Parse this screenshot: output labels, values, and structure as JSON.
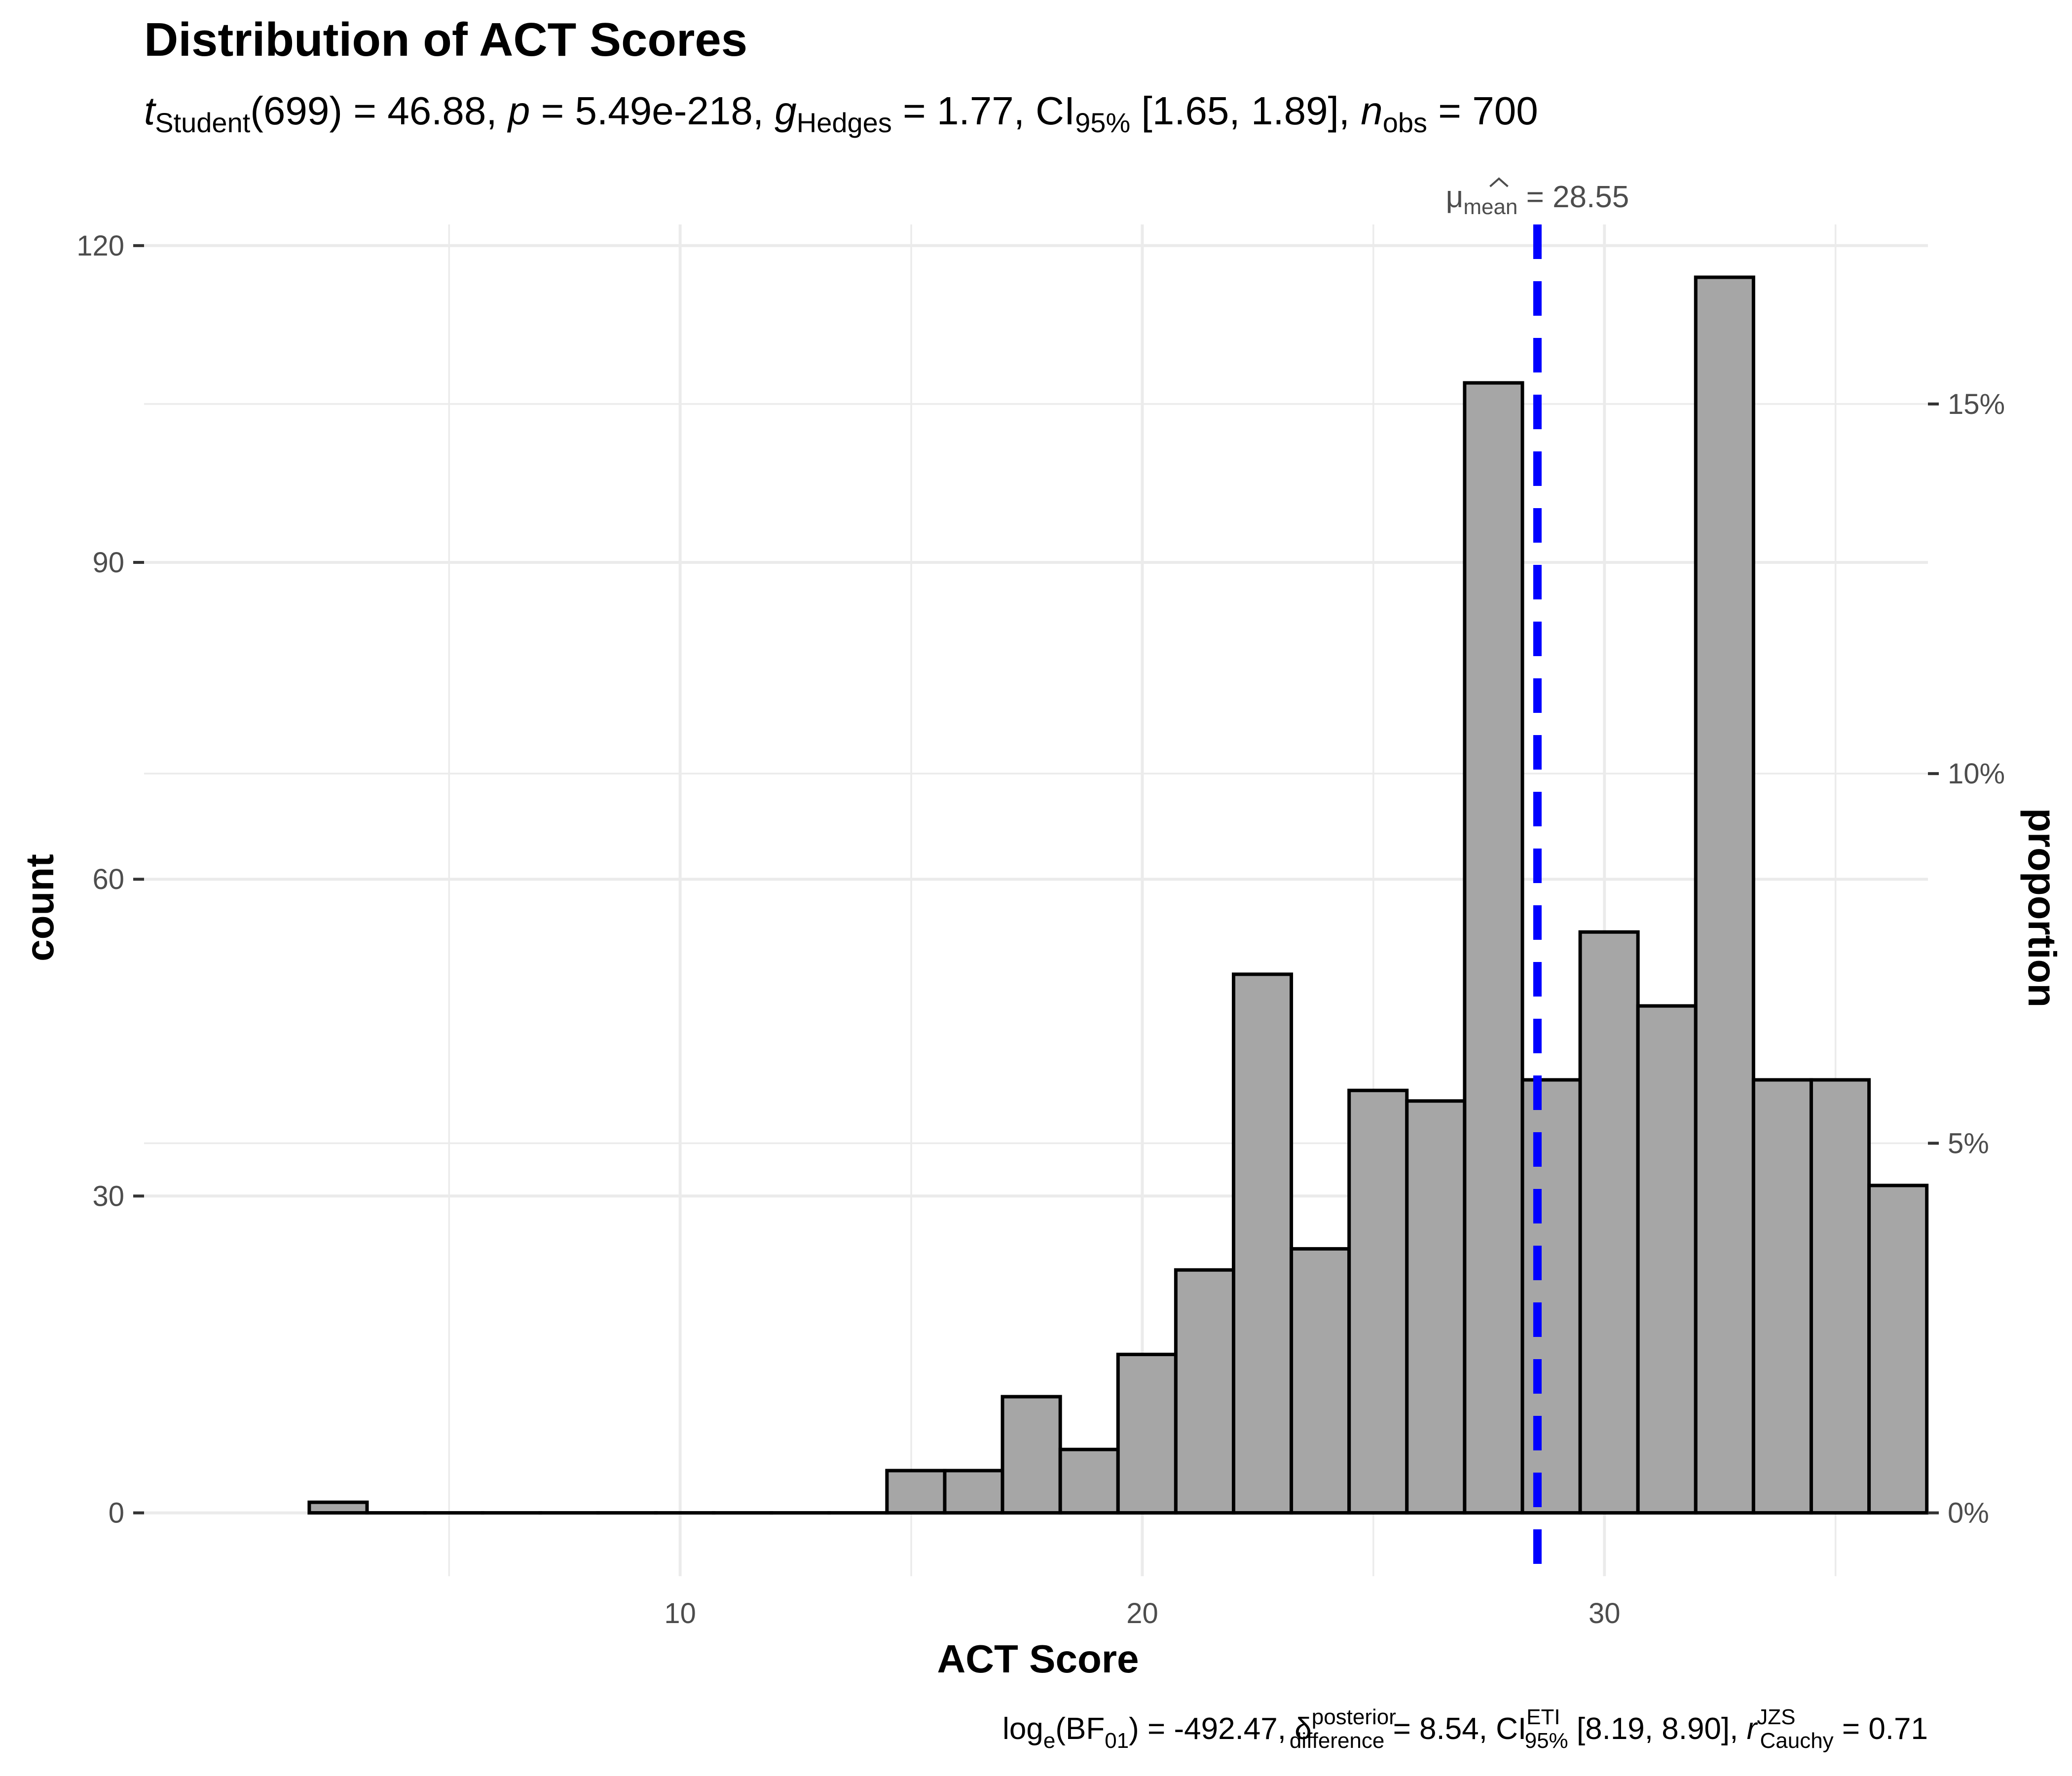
{
  "chart_data": {
    "type": "bar",
    "title": "Distribution of ACT Scores",
    "subtitle": {
      "parts": [
        {
          "text": "t",
          "italic": true
        },
        {
          "text": "Student",
          "sub": true
        },
        {
          "text": "(699) = 46.88, "
        },
        {
          "text": "p",
          "italic": true
        },
        {
          "text": " = 5.49e-218, "
        },
        {
          "text": "g",
          "italic": true,
          "hat": true
        },
        {
          "text": "Hedges",
          "sub": true
        },
        {
          "text": " = 1.77, CI"
        },
        {
          "text": "95%",
          "sub": true
        },
        {
          "text": " [1.65, 1.89], "
        },
        {
          "text": "n",
          "italic": true
        },
        {
          "text": "obs",
          "sub": true
        },
        {
          "text": " = 700"
        }
      ]
    },
    "caption": {
      "parts": [
        {
          "text": "log"
        },
        {
          "text": "e",
          "sub": true
        },
        {
          "text": "(BF"
        },
        {
          "text": "01",
          "sub": true
        },
        {
          "text": ") = -492.47, "
        },
        {
          "text": "δ",
          "hat": true
        },
        {
          "text": "posterior",
          "sup": true
        },
        {
          "text": "difference",
          "sub": true,
          "stacked": true
        },
        {
          "text": " = 8.54, CI"
        },
        {
          "text": "ETI",
          "sup": true
        },
        {
          "text": "95%",
          "sub": true,
          "stacked": true
        },
        {
          "text": " [8.19, 8.90], "
        },
        {
          "text": "r",
          "italic": true
        },
        {
          "text": "JZS",
          "sup": true
        },
        {
          "text": "Cauchy",
          "sub": true,
          "stacked": true
        },
        {
          "text": " = 0.71"
        }
      ]
    },
    "xlabel": "ACT Score",
    "ylabel": "count",
    "y2label": "proportion",
    "xlim": [
      -1.6,
      37.0
    ],
    "ylim": [
      -6,
      122
    ],
    "x_ticks": [
      10,
      20,
      30
    ],
    "y_ticks": [
      0,
      30,
      60,
      90,
      120
    ],
    "y2_ticks": [
      {
        "value": 0,
        "label": "0%"
      },
      {
        "value": 35,
        "label": "5%"
      },
      {
        "value": 70,
        "label": "10%"
      },
      {
        "value": 105,
        "label": "15%"
      }
    ],
    "bin_width": 1.25,
    "bins": [
      {
        "x": 2.6,
        "count": 1
      },
      {
        "x": 3.85,
        "count": 0
      },
      {
        "x": 5.1,
        "count": 0
      },
      {
        "x": 6.35,
        "count": 0
      },
      {
        "x": 7.6,
        "count": 0
      },
      {
        "x": 8.85,
        "count": 0
      },
      {
        "x": 10.1,
        "count": 0
      },
      {
        "x": 11.35,
        "count": 0
      },
      {
        "x": 12.6,
        "count": 0
      },
      {
        "x": 13.85,
        "count": 0
      },
      {
        "x": 15.1,
        "count": 4
      },
      {
        "x": 16.35,
        "count": 4
      },
      {
        "x": 17.6,
        "count": 11
      },
      {
        "x": 18.85,
        "count": 6
      },
      {
        "x": 20.1,
        "count": 15
      },
      {
        "x": 21.35,
        "count": 23
      },
      {
        "x": 22.6,
        "count": 51
      },
      {
        "x": 23.85,
        "count": 25
      },
      {
        "x": 25.1,
        "count": 40
      },
      {
        "x": 26.35,
        "count": 39
      },
      {
        "x": 27.6,
        "count": 107
      },
      {
        "x": 28.85,
        "count": 41
      },
      {
        "x": 30.1,
        "count": 55
      },
      {
        "x": 31.35,
        "count": 48
      },
      {
        "x": 32.6,
        "count": 117
      },
      {
        "x": 33.85,
        "count": 41
      },
      {
        "x": 35.1,
        "count": 41
      },
      {
        "x": 36.35,
        "count": 31
      }
    ],
    "mean_line": {
      "value": 28.55,
      "label_main": "μ",
      "label_sub": "mean",
      "label_value": " = 28.55",
      "color": "#0000ff"
    },
    "bar_fill": "#a6a6a6",
    "bar_stroke": "#000000",
    "grid": true
  }
}
